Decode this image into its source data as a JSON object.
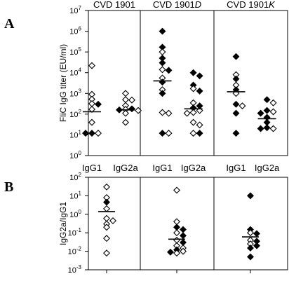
{
  "panel_letters": [
    "A",
    "B"
  ],
  "chart_data": [
    {
      "type": "scatter",
      "panel": "A",
      "ylabel": "FliC IgG titer (EU/ml)",
      "yscale": "log",
      "ylim": [
        1,
        10000000
      ],
      "ytick_base": "10",
      "ytick_exponents": [
        "0",
        "1",
        "2",
        "3",
        "4",
        "5",
        "6",
        "7"
      ],
      "marker_legend": "filled diamond and open diamond markers distinguish two experiments",
      "groups": [
        {
          "title_parts": [
            "CVD 1901",
            ""
          ],
          "series": [
            {
              "category": "IgG1",
              "median": 130,
              "points": [
                {
                  "v": 22000,
                  "f": false
                },
                {
                  "v": 900,
                  "f": false
                },
                {
                  "v": 520,
                  "f": false
                },
                {
                  "v": 320,
                  "f": false
                },
                {
                  "v": 300,
                  "f": true
                },
                {
                  "v": 170,
                  "f": false
                },
                {
                  "v": 40,
                  "f": false
                },
                {
                  "v": 12,
                  "f": true
                },
                {
                  "v": 12,
                  "f": false
                },
                {
                  "v": 12,
                  "f": true
                }
              ]
            },
            {
              "category": "IgG2a",
              "median": 160,
              "points": [
                {
                  "v": 1000,
                  "f": false
                },
                {
                  "v": 500,
                  "f": false
                },
                {
                  "v": 480,
                  "f": false
                },
                {
                  "v": 260,
                  "f": false
                },
                {
                  "v": 180,
                  "f": true
                },
                {
                  "v": 170,
                  "f": false
                },
                {
                  "v": 160,
                  "f": true
                },
                {
                  "v": 150,
                  "f": false
                },
                {
                  "v": 110,
                  "f": false
                },
                {
                  "v": 40,
                  "f": false
                }
              ]
            }
          ]
        },
        {
          "title_parts": [
            "CVD 1901",
            "D"
          ],
          "series": [
            {
              "category": "IgG1",
              "median": 4000,
              "points": [
                {
                  "v": 1000000,
                  "f": true
                },
                {
                  "v": 170000,
                  "f": true
                },
                {
                  "v": 100000,
                  "f": false
                },
                {
                  "v": 50000,
                  "f": true
                },
                {
                  "v": 30000,
                  "f": true
                },
                {
                  "v": 14000,
                  "f": false
                },
                {
                  "v": 13000,
                  "f": true
                },
                {
                  "v": 5500,
                  "f": false
                },
                {
                  "v": 3500,
                  "f": true
                },
                {
                  "v": 1500,
                  "f": false
                },
                {
                  "v": 1000,
                  "f": true
                },
                {
                  "v": 120,
                  "f": false
                },
                {
                  "v": 110,
                  "f": false
                },
                {
                  "v": 12,
                  "f": true
                },
                {
                  "v": 12,
                  "f": false
                }
              ]
            },
            {
              "category": "IgG2a",
              "median": 180,
              "points": [
                {
                  "v": 10000,
                  "f": true
                },
                {
                  "v": 7000,
                  "f": true
                },
                {
                  "v": 2500,
                  "f": true
                },
                {
                  "v": 1700,
                  "f": false
                },
                {
                  "v": 1300,
                  "f": true
                },
                {
                  "v": 350,
                  "f": false
                },
                {
                  "v": 250,
                  "f": true
                },
                {
                  "v": 200,
                  "f": true
                },
                {
                  "v": 150,
                  "f": false
                },
                {
                  "v": 120,
                  "f": false
                },
                {
                  "v": 110,
                  "f": false
                },
                {
                  "v": 40,
                  "f": false
                },
                {
                  "v": 30,
                  "f": false
                },
                {
                  "v": 12,
                  "f": false
                },
                {
                  "v": 12,
                  "f": true
                }
              ]
            }
          ]
        },
        {
          "title_parts": [
            "CVD 1901",
            "K"
          ],
          "series": [
            {
              "category": "IgG1",
              "median": 1200,
              "points": [
                {
                  "v": 60000,
                  "f": true
                },
                {
                  "v": 8000,
                  "f": false
                },
                {
                  "v": 5000,
                  "f": true
                },
                {
                  "v": 2500,
                  "f": false
                },
                {
                  "v": 1500,
                  "f": true
                },
                {
                  "v": 1000,
                  "f": false
                },
                {
                  "v": 300,
                  "f": true
                },
                {
                  "v": 250,
                  "f": false
                },
                {
                  "v": 110,
                  "f": true
                },
                {
                  "v": 12,
                  "f": true
                }
              ]
            },
            {
              "category": "IgG2a",
              "median": 60,
              "points": [
                {
                  "v": 500,
                  "f": true
                },
                {
                  "v": 350,
                  "f": false
                },
                {
                  "v": 150,
                  "f": true
                },
                {
                  "v": 130,
                  "f": false
                },
                {
                  "v": 110,
                  "f": true
                },
                {
                  "v": 70,
                  "f": true
                },
                {
                  "v": 40,
                  "f": true
                },
                {
                  "v": 22,
                  "f": true
                },
                {
                  "v": 20,
                  "f": false
                },
                {
                  "v": 20,
                  "f": true
                }
              ]
            }
          ]
        }
      ]
    },
    {
      "type": "scatter",
      "panel": "B",
      "ylabel": "IgG2a/IgG1",
      "yscale": "log",
      "ylim": [
        0.001,
        100
      ],
      "ytick_base": "10",
      "ytick_exponents": [
        "-3",
        "-2",
        "-1",
        "0",
        "1",
        "2"
      ],
      "groups": [
        {
          "x": 0,
          "median": 1.4,
          "points": [
            {
              "v": 30,
              "f": false
            },
            {
              "v": 8,
              "f": false
            },
            {
              "v": 4.5,
              "f": true
            },
            {
              "v": 2,
              "f": false
            },
            {
              "v": 0.6,
              "f": false
            },
            {
              "v": 0.45,
              "f": false
            },
            {
              "v": 0.3,
              "f": false
            },
            {
              "v": 0.2,
              "f": false
            },
            {
              "v": 0.05,
              "f": false
            },
            {
              "v": 0.008,
              "f": false
            }
          ]
        },
        {
          "x": 1,
          "median": 0.045,
          "points": [
            {
              "v": 20,
              "f": false
            },
            {
              "v": 0.4,
              "f": false
            },
            {
              "v": 0.2,
              "f": true
            },
            {
              "v": 0.15,
              "f": true
            },
            {
              "v": 0.1,
              "f": false
            },
            {
              "v": 0.07,
              "f": true
            },
            {
              "v": 0.04,
              "f": false
            },
            {
              "v": 0.03,
              "f": true
            },
            {
              "v": 0.02,
              "f": false
            },
            {
              "v": 0.015,
              "f": false
            },
            {
              "v": 0.012,
              "f": true
            },
            {
              "v": 0.01,
              "f": false
            },
            {
              "v": 0.009,
              "f": true
            },
            {
              "v": 0.008,
              "f": false
            }
          ]
        },
        {
          "x": 2,
          "median": 0.06,
          "points": [
            {
              "v": 10,
              "f": true
            },
            {
              "v": 0.15,
              "f": true
            },
            {
              "v": 0.1,
              "f": false
            },
            {
              "v": 0.09,
              "f": true
            },
            {
              "v": 0.04,
              "f": false
            },
            {
              "v": 0.035,
              "f": true
            },
            {
              "v": 0.025,
              "f": false
            },
            {
              "v": 0.02,
              "f": true
            },
            {
              "v": 0.015,
              "f": true
            },
            {
              "v": 0.005,
              "f": true
            }
          ]
        }
      ]
    }
  ]
}
